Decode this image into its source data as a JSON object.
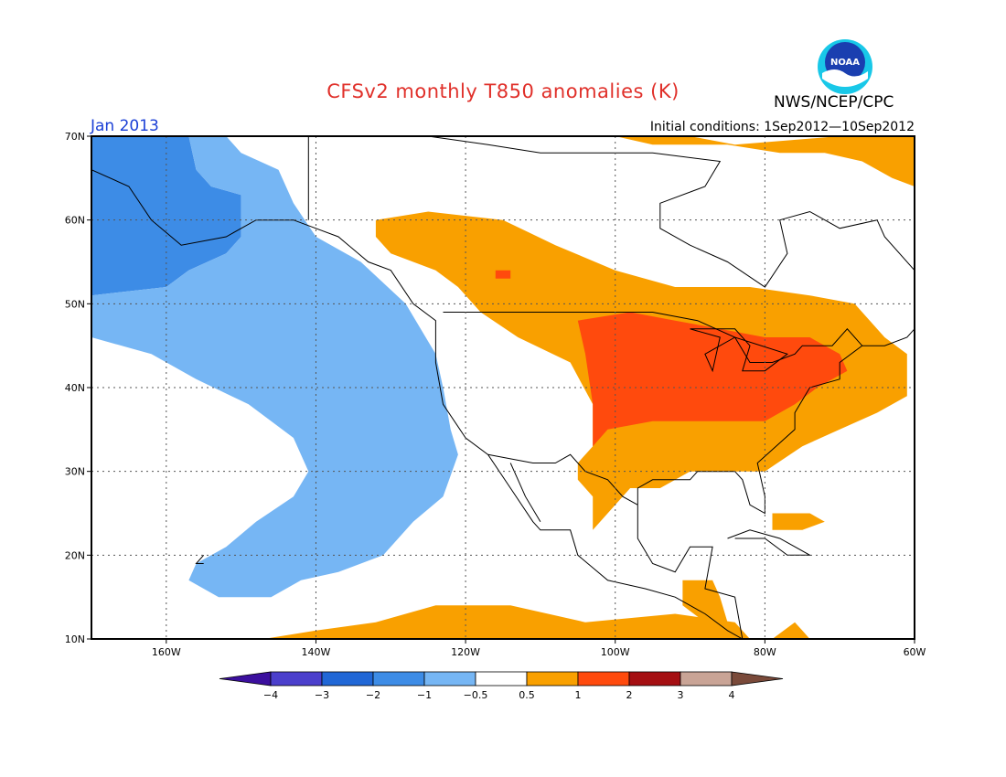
{
  "header": {
    "title": "CFSv2 monthly T850 anomalies (K)",
    "agency": "NWS/NCEP/CPC",
    "logo_text": "NOAA",
    "month": "Jan 2013",
    "initial_conditions": "Initial conditions: 1Sep2012—10Sep2012"
  },
  "map": {
    "lon_range": [
      -170,
      -60
    ],
    "lat_range": [
      10,
      70
    ],
    "lon_ticks": [
      {
        "lon": -160,
        "label": "160W"
      },
      {
        "lon": -140,
        "label": "140W"
      },
      {
        "lon": -120,
        "label": "120W"
      },
      {
        "lon": -100,
        "label": "100W"
      },
      {
        "lon": -80,
        "label": "80W"
      },
      {
        "lon": -60,
        "label": "60W"
      }
    ],
    "lat_ticks": [
      {
        "lat": 10,
        "label": "10N"
      },
      {
        "lat": 20,
        "label": "20N"
      },
      {
        "lat": 30,
        "label": "30N"
      },
      {
        "lat": 40,
        "label": "40N"
      },
      {
        "lat": 50,
        "label": "50N"
      },
      {
        "lat": 60,
        "label": "60N"
      },
      {
        "lat": 70,
        "label": "70N"
      }
    ],
    "grid": true
  },
  "anomaly_regions": [
    {
      "name": "alaska-strong-cold",
      "bin": "-2 to -1",
      "color": "#3d8ce6",
      "points": [
        [
          -170,
          70
        ],
        [
          -157,
          70
        ],
        [
          -156,
          66
        ],
        [
          -154,
          64
        ],
        [
          -150,
          63
        ],
        [
          -150,
          58
        ],
        [
          -152,
          56
        ],
        [
          -157,
          54
        ],
        [
          -160,
          52
        ],
        [
          -170,
          51
        ]
      ]
    },
    {
      "name": "pacific-cold-band",
      "bin": "-1 to -0.5",
      "color": "#76b6f4",
      "points": [
        [
          -157,
          70
        ],
        [
          -152,
          70
        ],
        [
          -150,
          68
        ],
        [
          -145,
          66
        ],
        [
          -143,
          62
        ],
        [
          -140,
          58
        ],
        [
          -134,
          55
        ],
        [
          -128,
          50
        ],
        [
          -124,
          44
        ],
        [
          -123,
          40
        ],
        [
          -122,
          35
        ],
        [
          -121,
          32
        ],
        [
          -123,
          27
        ],
        [
          -127,
          24
        ],
        [
          -131,
          20
        ],
        [
          -137,
          18
        ],
        [
          -142,
          17
        ],
        [
          -146,
          15
        ],
        [
          -153,
          15
        ],
        [
          -157,
          17
        ],
        [
          -156,
          19
        ],
        [
          -152,
          21
        ],
        [
          -148,
          24
        ],
        [
          -143,
          27
        ],
        [
          -141,
          30
        ],
        [
          -143,
          34
        ],
        [
          -149,
          38
        ],
        [
          -156,
          41
        ],
        [
          -162,
          44
        ],
        [
          -170,
          46
        ],
        [
          -170,
          51
        ],
        [
          -160,
          52
        ],
        [
          -157,
          54
        ],
        [
          -152,
          56
        ],
        [
          -150,
          58
        ],
        [
          -150,
          63
        ],
        [
          -154,
          64
        ],
        [
          -156,
          66
        ]
      ]
    },
    {
      "name": "north-america-warm",
      "bin": "0.5 to 1",
      "color": "#f9a000",
      "points": [
        [
          -132,
          60
        ],
        [
          -125,
          61
        ],
        [
          -115,
          60
        ],
        [
          -108,
          57
        ],
        [
          -100,
          54
        ],
        [
          -92,
          52
        ],
        [
          -82,
          52
        ],
        [
          -74,
          51
        ],
        [
          -68,
          50
        ],
        [
          -64,
          46
        ],
        [
          -61,
          44
        ],
        [
          -61,
          39
        ],
        [
          -65,
          37
        ],
        [
          -70,
          35
        ],
        [
          -75,
          33
        ],
        [
          -80,
          30
        ],
        [
          -85,
          30
        ],
        [
          -90,
          30
        ],
        [
          -94,
          28
        ],
        [
          -98,
          28
        ],
        [
          -101,
          25
        ],
        [
          -103,
          23
        ],
        [
          -103,
          27
        ],
        [
          -105,
          29
        ],
        [
          -105,
          31
        ],
        [
          -103,
          33
        ],
        [
          -103,
          38
        ],
        [
          -106,
          43
        ],
        [
          -113,
          46
        ],
        [
          -118,
          49
        ],
        [
          -121,
          52
        ],
        [
          -124,
          54
        ],
        [
          -130,
          56
        ],
        [
          -132,
          58
        ]
      ]
    },
    {
      "name": "arctic-warm",
      "bin": "0.5 to 1",
      "color": "#f9a000",
      "points": [
        [
          -100,
          70
        ],
        [
          -90,
          70
        ],
        [
          -84,
          69
        ],
        [
          -70,
          70
        ],
        [
          -60,
          70
        ],
        [
          -60,
          64
        ],
        [
          -63,
          65
        ],
        [
          -67,
          67
        ],
        [
          -72,
          68
        ],
        [
          -78,
          68
        ],
        [
          -85,
          69
        ],
        [
          -95,
          69
        ]
      ]
    },
    {
      "name": "caribbean-warm",
      "bin": "0.5 to 1",
      "color": "#f9a000",
      "points": [
        [
          -79,
          25
        ],
        [
          -74,
          25
        ],
        [
          -72,
          24
        ],
        [
          -75,
          23
        ],
        [
          -79,
          23
        ]
      ]
    },
    {
      "name": "central-america-warm",
      "bin": "0.5 to 1",
      "color": "#f9a000",
      "points": [
        [
          -91,
          17
        ],
        [
          -87,
          17
        ],
        [
          -86,
          15
        ],
        [
          -85,
          12
        ],
        [
          -88,
          12
        ],
        [
          -91,
          14
        ]
      ]
    },
    {
      "name": "tropical-pacific-warm",
      "bin": "0.5 to 1",
      "color": "#f9a000",
      "points": [
        [
          -147,
          10
        ],
        [
          -140,
          11
        ],
        [
          -132,
          12
        ],
        [
          -124,
          14
        ],
        [
          -114,
          14
        ],
        [
          -104,
          12
        ],
        [
          -92,
          13
        ],
        [
          -84,
          12
        ],
        [
          -82,
          10
        ]
      ]
    },
    {
      "name": "tropical-atlantic-warm",
      "bin": "0.5 to 1",
      "color": "#f9a000",
      "points": [
        [
          -79,
          10
        ],
        [
          -76,
          12
        ],
        [
          -75,
          11
        ],
        [
          -74,
          10
        ]
      ]
    },
    {
      "name": "midwest-strong-warm",
      "bin": "1 to 2",
      "color": "#ff4a0d",
      "points": [
        [
          -105,
          48
        ],
        [
          -98,
          49
        ],
        [
          -92,
          48
        ],
        [
          -86,
          47
        ],
        [
          -80,
          46
        ],
        [
          -74,
          46
        ],
        [
          -70,
          44
        ],
        [
          -69,
          42
        ],
        [
          -73,
          40
        ],
        [
          -76,
          38
        ],
        [
          -80,
          36
        ],
        [
          -88,
          36
        ],
        [
          -95,
          36
        ],
        [
          -101,
          35
        ],
        [
          -103,
          33
        ],
        [
          -103,
          38
        ],
        [
          -104,
          44
        ]
      ]
    },
    {
      "name": "alberta-strong-warm",
      "bin": "1 to 2",
      "color": "#ff4a0d",
      "points": [
        [
          -116,
          54
        ],
        [
          -114,
          54
        ],
        [
          -114,
          53
        ],
        [
          -116,
          53
        ]
      ]
    }
  ],
  "colorbar": {
    "bins": [
      {
        "range": "<-4",
        "color": "#3b0f9e"
      },
      {
        "range": "-4 to -3",
        "color": "#4b3fcc"
      },
      {
        "range": "-3 to -2",
        "color": "#2167d6"
      },
      {
        "range": "-2 to -1",
        "color": "#3d8ce6"
      },
      {
        "range": "-1 to -0.5",
        "color": "#76b6f4"
      },
      {
        "range": "-0.5 to 0.5",
        "color": "#ffffff"
      },
      {
        "range": "0.5 to 1",
        "color": "#f9a000"
      },
      {
        "range": "1 to 2",
        "color": "#ff4a0d"
      },
      {
        "range": "2 to 3",
        "color": "#a50f12"
      },
      {
        "range": "3 to 4",
        "color": "#c9a496"
      },
      {
        "range": ">4",
        "color": "#7a4a3a"
      }
    ],
    "labels": [
      "−4",
      "−3",
      "−2",
      "−1",
      "−0.5",
      "0.5",
      "1",
      "2",
      "3",
      "4"
    ]
  }
}
